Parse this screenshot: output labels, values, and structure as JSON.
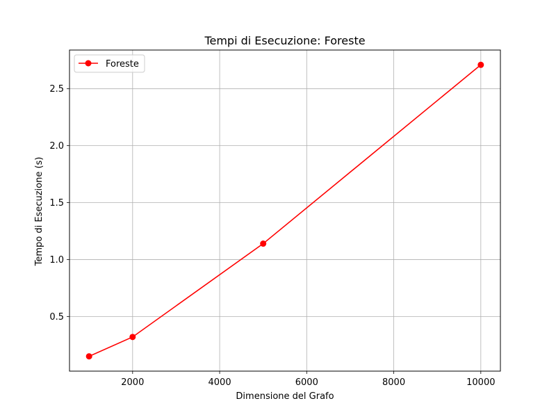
{
  "chart_data": {
    "type": "line",
    "title": "Tempi di Esecuzione: Foreste",
    "xlabel": "Dimensione del Grafo",
    "ylabel": "Tempo di Esecuzione (s)",
    "xlim": [
      550,
      10450
    ],
    "ylim": [
      0.02,
      2.84
    ],
    "xticks": [
      2000,
      4000,
      6000,
      8000,
      10000
    ],
    "xtick_labels": [
      "2000",
      "4000",
      "6000",
      "8000",
      "10000"
    ],
    "yticks": [
      0.5,
      1.0,
      1.5,
      2.0,
      2.5
    ],
    "ytick_labels": [
      "0.5",
      "1.0",
      "1.5",
      "2.0",
      "2.5"
    ],
    "grid": true,
    "legend_position": "top-left",
    "series": [
      {
        "name": "Foreste",
        "color": "#ff0000",
        "marker": "circle",
        "x": [
          1000,
          2000,
          5000,
          10000
        ],
        "y": [
          0.15,
          0.32,
          1.14,
          2.71
        ]
      }
    ]
  }
}
